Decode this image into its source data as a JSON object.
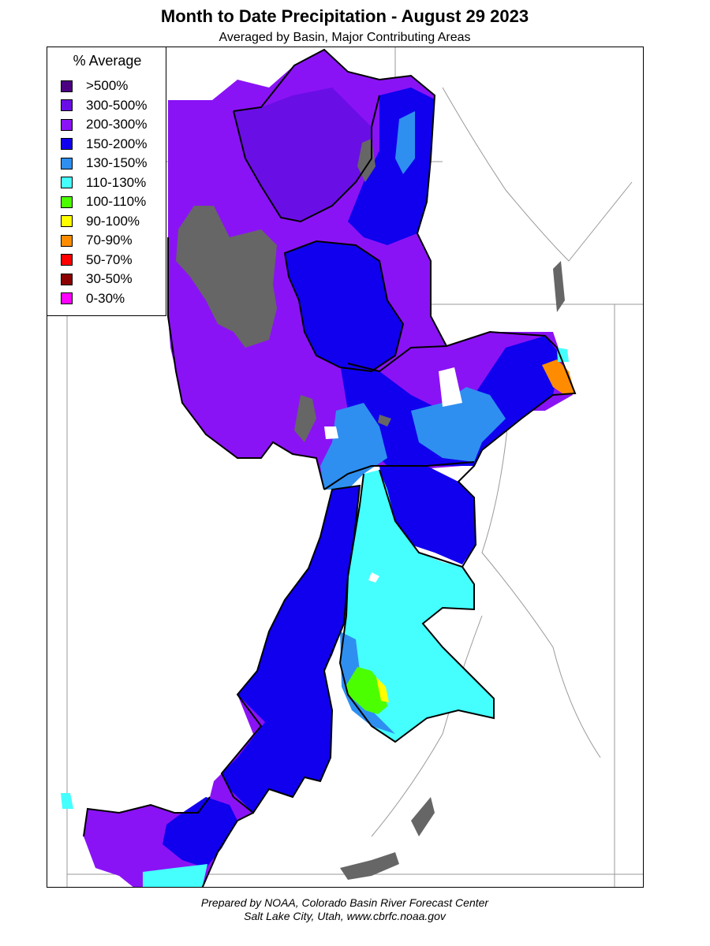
{
  "title": "Month to Date Precipitation - August 29 2023",
  "subtitle": "Averaged by Basin, Major Contributing Areas",
  "legend": {
    "title": "% Average",
    "items": [
      {
        "label": ">500%",
        "color": "#4b0082"
      },
      {
        "label": "300-500%",
        "color": "#6a0ee6"
      },
      {
        "label": "200-300%",
        "color": "#8a13f5"
      },
      {
        "label": "150-200%",
        "color": "#1000ee"
      },
      {
        "label": "130-150%",
        "color": "#2e8ff0"
      },
      {
        "label": "110-130%",
        "color": "#45ffff"
      },
      {
        "label": "100-110%",
        "color": "#4cff00"
      },
      {
        "label": "90-100%",
        "color": "#ffff00"
      },
      {
        "label": "70-90%",
        "color": "#ff8c00"
      },
      {
        "label": "50-70%",
        "color": "#ff0000"
      },
      {
        "label": "30-50%",
        "color": "#8b0000"
      },
      {
        "label": "0-30%",
        "color": "#ff00ff"
      }
    ]
  },
  "map_features": {
    "no_data_color": "#666666",
    "basin_outline_color": "#000000",
    "boundary_color": "#999999"
  },
  "footer": {
    "line1": "Prepared by NOAA, Colorado Basin River Forecast Center",
    "line2": "Salt Lake City, Utah, www.cbrfc.noaa.gov"
  }
}
